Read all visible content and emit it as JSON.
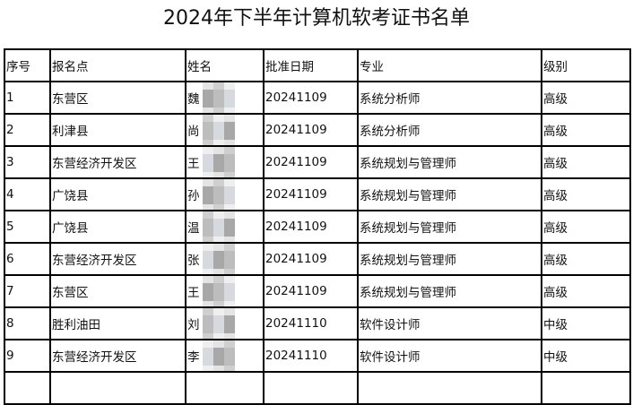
{
  "title": "2024年下半年计算机软考证书名单",
  "columns": [
    "序号",
    "报名点",
    "姓名",
    "批准日期",
    "专业",
    "级别"
  ],
  "rows": [
    {
      "no": "1",
      "site": "东营区",
      "surname": "魏",
      "date": "20241109",
      "major": "系统分析师",
      "level": "高级"
    },
    {
      "no": "2",
      "site": "利津县",
      "surname": "尚",
      "date": "20241109",
      "major": "系统分析师",
      "level": "高级"
    },
    {
      "no": "3",
      "site": "东营经济开发区",
      "surname": "王",
      "date": "20241109",
      "major": "系统规划与管理师",
      "level": "高级"
    },
    {
      "no": "4",
      "site": "广饶县",
      "surname": "孙",
      "date": "20241109",
      "major": "系统规划与管理师",
      "level": "高级"
    },
    {
      "no": "5",
      "site": "广饶县",
      "surname": "温",
      "date": "20241109",
      "major": "系统规划与管理师",
      "level": "高级"
    },
    {
      "no": "6",
      "site": "东营经济开发区",
      "surname": "张",
      "date": "20241109",
      "major": "系统规划与管理师",
      "level": "高级"
    },
    {
      "no": "7",
      "site": "东营区",
      "surname": "王",
      "date": "20241109",
      "major": "系统规划与管理师",
      "level": "高级"
    },
    {
      "no": "8",
      "site": "胜利油田",
      "surname": "刘",
      "date": "20241110",
      "major": "软件设计师",
      "level": "中级"
    },
    {
      "no": "9",
      "site": "东营经济开发区",
      "surname": "李",
      "date": "20241110",
      "major": "软件设计师",
      "level": "中级"
    },
    {
      "no": "",
      "site": "",
      "surname": "",
      "date": "",
      "major": "",
      "level": ""
    }
  ]
}
